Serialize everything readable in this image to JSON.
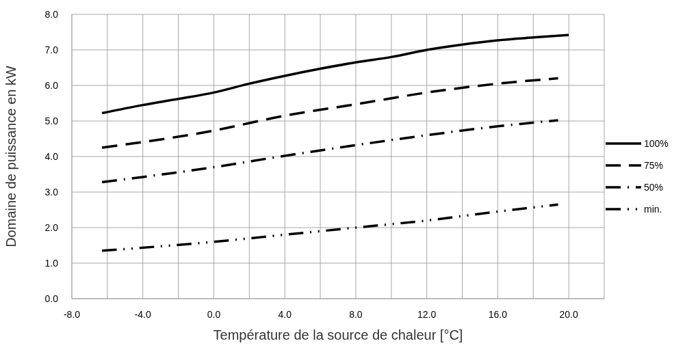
{
  "chart_data": {
    "type": "line",
    "xlabel": "Température de la source de chaleur [°C]",
    "ylabel": "Domaine de puissance en kW",
    "xlim": [
      -8,
      22
    ],
    "xticks": [
      {
        "value": -8,
        "label": "-8.0"
      },
      {
        "value": -6,
        "label": null
      },
      {
        "value": -4,
        "label": "-4.0"
      },
      {
        "value": -2,
        "label": null
      },
      {
        "value": 0,
        "label": "0.0"
      },
      {
        "value": 2,
        "label": null
      },
      {
        "value": 4,
        "label": "4.0"
      },
      {
        "value": 6,
        "label": null
      },
      {
        "value": 8,
        "label": "8.0"
      },
      {
        "value": 10,
        "label": null
      },
      {
        "value": 12,
        "label": "12.0"
      },
      {
        "value": 14,
        "label": null
      },
      {
        "value": 16,
        "label": "16.0"
      },
      {
        "value": 18,
        "label": null
      },
      {
        "value": 20,
        "label": "20.0"
      }
    ],
    "ylim": [
      0,
      8
    ],
    "yticks": [
      {
        "value": 0,
        "label": "0.0"
      },
      {
        "value": 1,
        "label": "1.0"
      },
      {
        "value": 2,
        "label": "2.0"
      },
      {
        "value": 3,
        "label": "3.0"
      },
      {
        "value": 4,
        "label": "4.0"
      },
      {
        "value": 5,
        "label": "5.0"
      },
      {
        "value": 6,
        "label": "6.0"
      },
      {
        "value": 7,
        "label": "7.0"
      },
      {
        "value": 8,
        "label": "8.0"
      }
    ],
    "grid": true,
    "legend": "right",
    "marker": "none",
    "series": [
      {
        "name": "100%",
        "color": "#000000",
        "line_style": "solid",
        "x": [
          -6.3,
          -4,
          -2,
          0,
          2,
          4,
          6,
          8,
          10,
          12,
          14,
          16,
          18,
          20
        ],
        "values": [
          5.22,
          5.45,
          5.62,
          5.8,
          6.05,
          6.27,
          6.47,
          6.65,
          6.8,
          7.0,
          7.15,
          7.27,
          7.35,
          7.42
        ]
      },
      {
        "name": "75%",
        "color": "#000000",
        "line_style": "dashed",
        "x": [
          -6.3,
          0,
          4,
          8,
          12,
          16,
          19.4
        ],
        "values": [
          4.25,
          4.73,
          5.15,
          5.47,
          5.8,
          6.05,
          6.2
        ]
      },
      {
        "name": "50%",
        "color": "#000000",
        "line_style": "dashdot",
        "x": [
          -6.3,
          0,
          4,
          8,
          12,
          16,
          19.4
        ],
        "values": [
          3.28,
          3.7,
          4.02,
          4.32,
          4.6,
          4.85,
          5.02
        ]
      },
      {
        "name": "min.",
        "color": "#000000",
        "line_style": "dashdotdot",
        "x": [
          -6.3,
          0,
          4,
          8,
          12,
          16,
          19.4
        ],
        "values": [
          1.35,
          1.6,
          1.8,
          2.0,
          2.2,
          2.45,
          2.65
        ]
      }
    ]
  }
}
